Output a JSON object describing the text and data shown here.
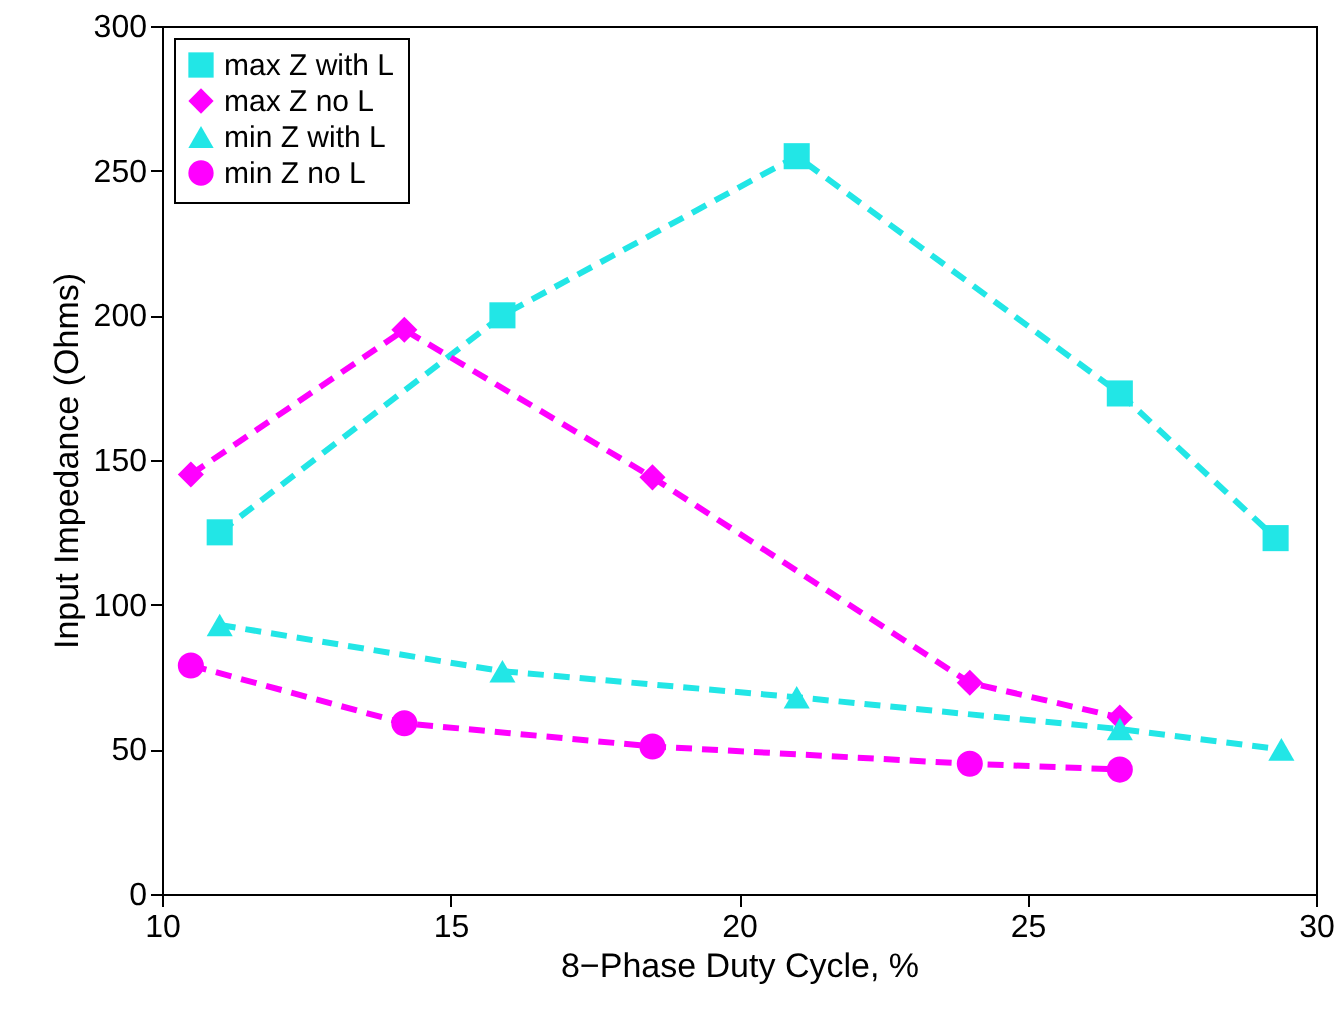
{
  "chart_data": {
    "type": "line",
    "xlabel": "8−Phase Duty Cycle, %",
    "ylabel": "Input Impedance (Ohms)",
    "xlim": [
      10,
      30
    ],
    "xticks": [
      10,
      15,
      20,
      25,
      30
    ],
    "ylim": [
      0,
      300
    ],
    "yticks": [
      0,
      50,
      100,
      150,
      200,
      250,
      300
    ],
    "grid": false,
    "legend": "top left",
    "line_style": "dashed",
    "series": [
      {
        "name": "max Z with L",
        "color": "#22e6e6",
        "marker": "square",
        "x": [
          11.0,
          15.9,
          21.0,
          26.6,
          29.3
        ],
        "values": [
          125,
          200,
          255,
          173,
          123
        ]
      },
      {
        "name": "max Z no L",
        "color": "#ff00ff",
        "marker": "diamond",
        "x": [
          10.5,
          14.2,
          18.5,
          24.0,
          26.6
        ],
        "values": [
          145,
          195,
          144,
          73,
          61
        ]
      },
      {
        "name": "min Z with L",
        "color": "#22e6e6",
        "marker": "triangle",
        "x": [
          11.0,
          15.9,
          21.0,
          26.6,
          29.4
        ],
        "values": [
          93,
          77,
          68,
          57,
          50
        ]
      },
      {
        "name": "min Z no L",
        "color": "#ff00ff",
        "marker": "circle",
        "x": [
          10.5,
          14.2,
          18.5,
          24.0,
          26.6
        ],
        "values": [
          79,
          59,
          51,
          45,
          43
        ]
      }
    ]
  }
}
